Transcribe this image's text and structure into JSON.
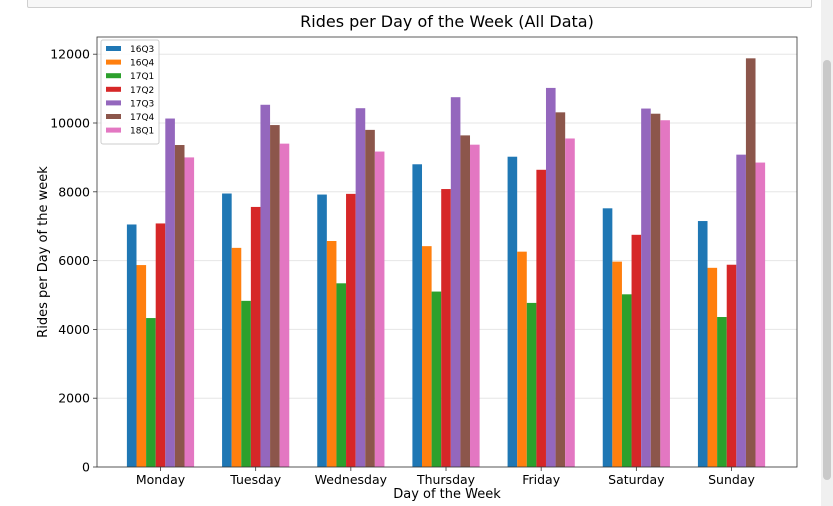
{
  "chart_data": {
    "type": "bar",
    "title": "Rides per Day of the Week (All Data)",
    "xlabel": "Day of the Week",
    "ylabel": "Rides per Day of the week",
    "ylim": [
      0,
      12500
    ],
    "yticks": [
      0,
      2000,
      4000,
      6000,
      8000,
      10000,
      12000
    ],
    "grid": true,
    "legend_position": "top-left",
    "categories": [
      "Monday",
      "Tuesday",
      "Wednesday",
      "Thursday",
      "Friday",
      "Saturday",
      "Sunday"
    ],
    "series": [
      {
        "name": "16Q3",
        "color": "#1f77b4",
        "values": [
          7050,
          7950,
          7920,
          8800,
          9020,
          7520,
          7150
        ]
      },
      {
        "name": "16Q4",
        "color": "#ff7f0e",
        "values": [
          5870,
          6370,
          6570,
          6420,
          6260,
          5970,
          5790
        ]
      },
      {
        "name": "17Q1",
        "color": "#2ca02c",
        "values": [
          4330,
          4830,
          5340,
          5100,
          4770,
          5020,
          4360
        ]
      },
      {
        "name": "17Q2",
        "color": "#d62728",
        "values": [
          7080,
          7560,
          7940,
          8080,
          8640,
          6750,
          5880
        ]
      },
      {
        "name": "17Q3",
        "color": "#9467bd",
        "values": [
          10130,
          10530,
          10430,
          10750,
          11020,
          10420,
          9080
        ]
      },
      {
        "name": "17Q4",
        "color": "#8c564b",
        "values": [
          9360,
          9940,
          9800,
          9640,
          10310,
          10270,
          11880
        ]
      },
      {
        "name": "18Q1",
        "color": "#e377c2",
        "values": [
          9000,
          9400,
          9170,
          9370,
          9550,
          10080,
          8850
        ]
      }
    ]
  }
}
